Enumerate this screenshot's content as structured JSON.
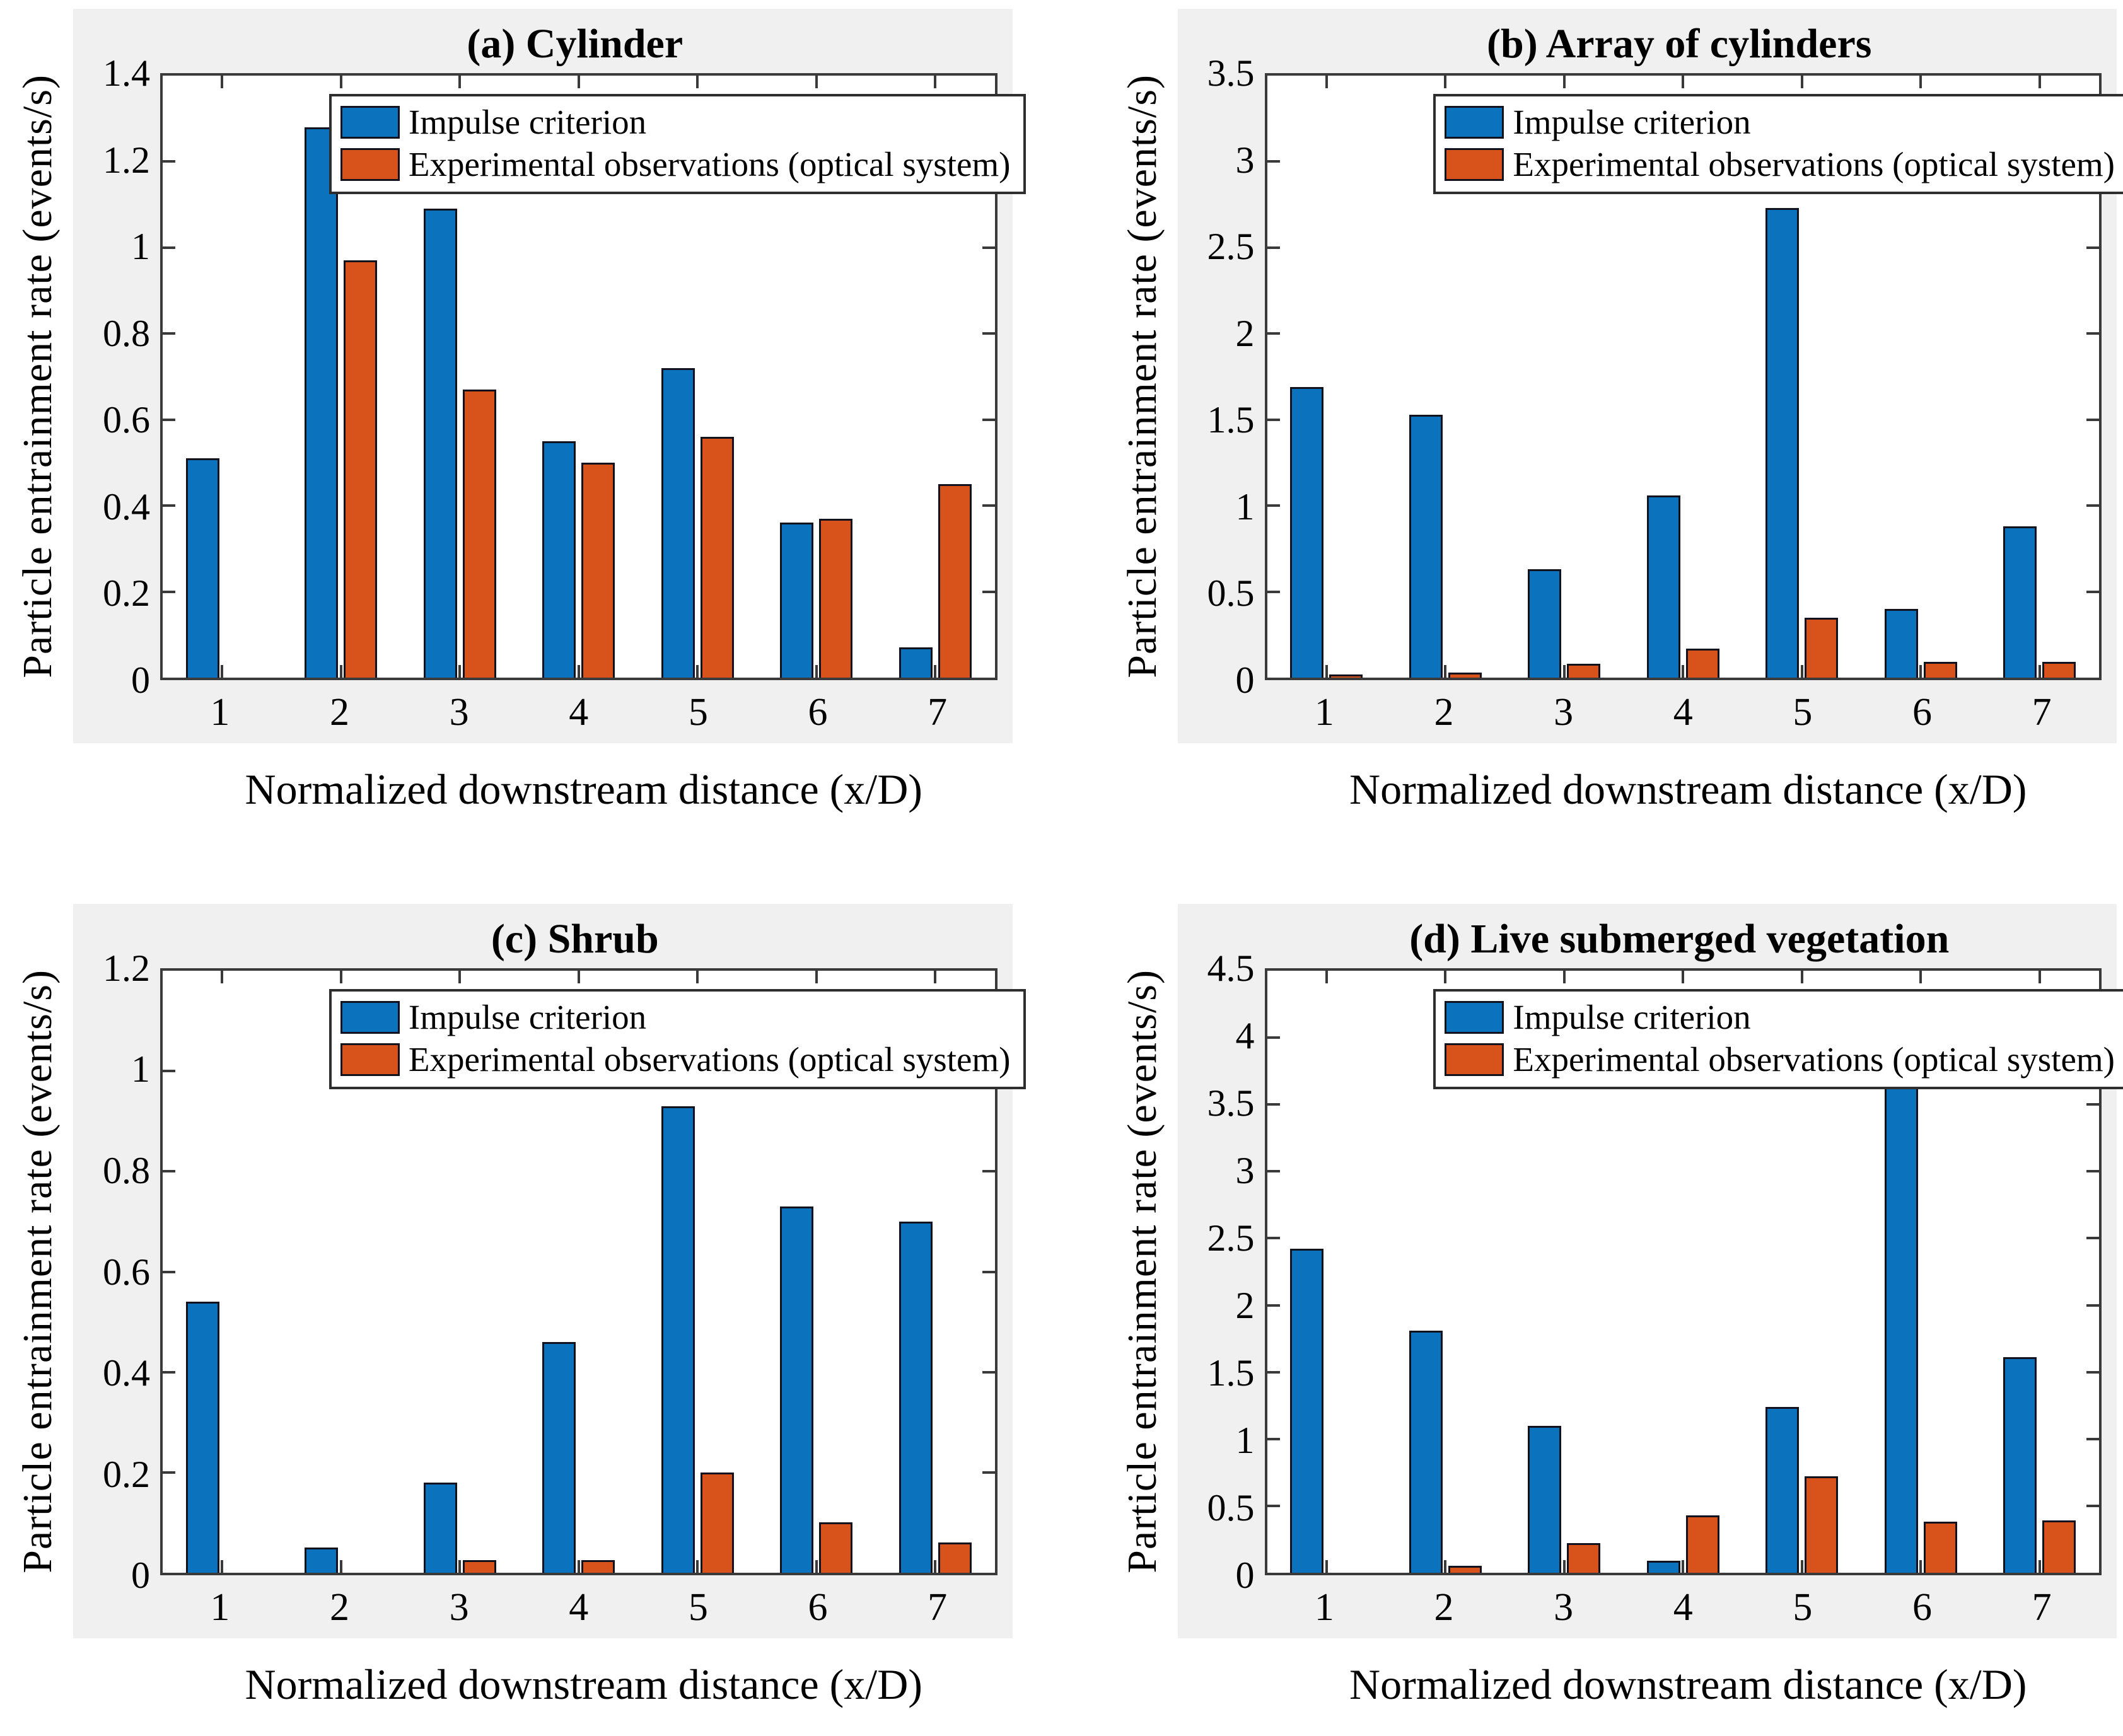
{
  "figure": {
    "legend": {
      "impulse": "Impulse criterion",
      "experimental": "Experimental observations (optical system)"
    },
    "colors": {
      "impulse_bar": "#0b72bd",
      "experimental_bar": "#d7531b",
      "bar_edge": "#12121e",
      "panel_background": "#f0f0f0",
      "plot_background": "#ffffff",
      "axis": "#3a3a3a"
    },
    "shared_xlabel": "Normalized downstream distance (x/D)",
    "shared_ylabel": "Particle entrainment rate (events/s)"
  },
  "chart_data": [
    {
      "type": "bar",
      "title": "(a) Cylinder",
      "xlabel": "Normalized downstream distance (x/D)",
      "ylabel": "Particle entrainment rate (events/s)",
      "categories": [
        "1",
        "2",
        "3",
        "4",
        "5",
        "6",
        "7"
      ],
      "series": [
        {
          "name": "Impulse criterion",
          "values": [
            0.51,
            1.28,
            1.09,
            0.55,
            0.72,
            0.36,
            0.07
          ]
        },
        {
          "name": "Experimental observations (optical system)",
          "values": [
            0,
            0.97,
            0.67,
            0.5,
            0.56,
            0.37,
            0.45
          ]
        }
      ],
      "ylim": [
        0,
        1.4
      ],
      "yticks": [
        0,
        0.2,
        0.4,
        0.6,
        0.8,
        1,
        1.2,
        1.4
      ],
      "ytick_labels": [
        "0",
        "0.2",
        "0.4",
        "0.6",
        "0.8",
        "1",
        "1.2",
        "1.4"
      ],
      "grid": false,
      "legend_position": "top-inside"
    },
    {
      "type": "bar",
      "title": "(b) Array of cylinders",
      "xlabel": "Normalized downstream distance (x/D)",
      "ylabel": "Particle entrainment rate (events/s)",
      "categories": [
        "1",
        "2",
        "3",
        "4",
        "5",
        "6",
        "7"
      ],
      "series": [
        {
          "name": "Impulse criterion",
          "values": [
            1.69,
            1.53,
            0.63,
            1.06,
            2.73,
            0.4,
            0.88
          ]
        },
        {
          "name": "Experimental observations (optical system)",
          "values": [
            0.02,
            0.03,
            0.08,
            0.17,
            0.35,
            0.09,
            0.09
          ]
        }
      ],
      "ylim": [
        0,
        3.5
      ],
      "yticks": [
        0,
        0.5,
        1,
        1.5,
        2,
        2.5,
        3,
        3.5
      ],
      "ytick_labels": [
        "0",
        "0.5",
        "1",
        "1.5",
        "2",
        "2.5",
        "3",
        "3.5"
      ],
      "grid": false,
      "legend_position": "top-inside"
    },
    {
      "type": "bar",
      "title": "(c) Shrub",
      "xlabel": "Normalized downstream distance (x/D)",
      "ylabel": "Particle entrainment rate (events/s)",
      "categories": [
        "1",
        "2",
        "3",
        "4",
        "5",
        "6",
        "7"
      ],
      "series": [
        {
          "name": "Impulse criterion",
          "values": [
            0.54,
            0.05,
            0.18,
            0.46,
            0.93,
            0.73,
            0.7
          ]
        },
        {
          "name": "Experimental observations (optical system)",
          "values": [
            0,
            0,
            0.025,
            0.025,
            0.2,
            0.1,
            0.06
          ]
        }
      ],
      "ylim": [
        0,
        1.2
      ],
      "yticks": [
        0,
        0.2,
        0.4,
        0.6,
        0.8,
        1,
        1.2
      ],
      "ytick_labels": [
        "0",
        "0.2",
        "0.4",
        "0.6",
        "0.8",
        "1",
        "1.2"
      ],
      "grid": false,
      "legend_position": "top-inside"
    },
    {
      "type": "bar",
      "title": "(d) Live submerged vegetation",
      "xlabel": "Normalized downstream distance (x/D)",
      "ylabel": "Particle entrainment rate (events/s)",
      "categories": [
        "1",
        "2",
        "3",
        "4",
        "5",
        "6",
        "7"
      ],
      "series": [
        {
          "name": "Impulse criterion",
          "values": [
            2.42,
            1.81,
            1.1,
            0.09,
            1.24,
            3.7,
            1.61
          ]
        },
        {
          "name": "Experimental observations (optical system)",
          "values": [
            0,
            0.05,
            0.22,
            0.43,
            0.72,
            0.38,
            0.39
          ]
        }
      ],
      "ylim": [
        0,
        4.5
      ],
      "yticks": [
        0,
        0.5,
        1,
        1.5,
        2,
        2.5,
        3,
        3.5,
        4,
        4.5
      ],
      "ytick_labels": [
        "0",
        "0.5",
        "1",
        "1.5",
        "2",
        "2.5",
        "3",
        "3.5",
        "4",
        "4.5"
      ],
      "grid": false,
      "legend_position": "top-inside"
    }
  ]
}
